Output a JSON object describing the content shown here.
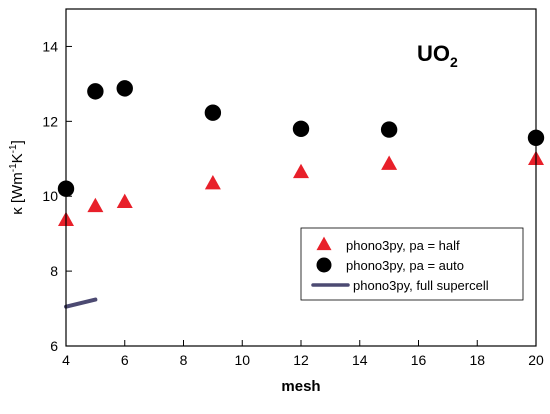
{
  "chart_data": {
    "type": "scatter",
    "xlabel": "mesh",
    "ylabel_main": "κ [Wm",
    "ylabel_sup1": "-1",
    "ylabel_mid": "K",
    "ylabel_sup2": "-1",
    "ylabel_end": "]",
    "annotation_main": "UO",
    "annotation_sub": "2",
    "xlim": [
      4,
      20
    ],
    "ylim": [
      6,
      15
    ],
    "xticks": [
      4,
      6,
      8,
      10,
      12,
      14,
      16,
      18,
      20
    ],
    "yticks": [
      6,
      8,
      10,
      12,
      14
    ],
    "grid": false,
    "legend_placement": "lower-right",
    "colors": {
      "half": "#e8202a",
      "auto": "#000000",
      "full": "#4c4a72"
    },
    "series": [
      {
        "name": "phono3py, pa = half",
        "marker": "triangle",
        "x": [
          4,
          5,
          6,
          9,
          12,
          15,
          20
        ],
        "y": [
          9.35,
          9.72,
          9.83,
          10.33,
          10.63,
          10.85,
          10.98
        ]
      },
      {
        "name": "phono3py, pa = auto",
        "marker": "circle",
        "x": [
          4,
          5,
          6,
          9,
          12,
          15,
          20
        ],
        "y": [
          10.2,
          12.8,
          12.88,
          12.23,
          11.8,
          11.78,
          11.56
        ]
      },
      {
        "name": "phono3py, full supercell",
        "marker": "line",
        "x": [
          4,
          5
        ],
        "y": [
          7.05,
          7.24
        ]
      }
    ]
  }
}
